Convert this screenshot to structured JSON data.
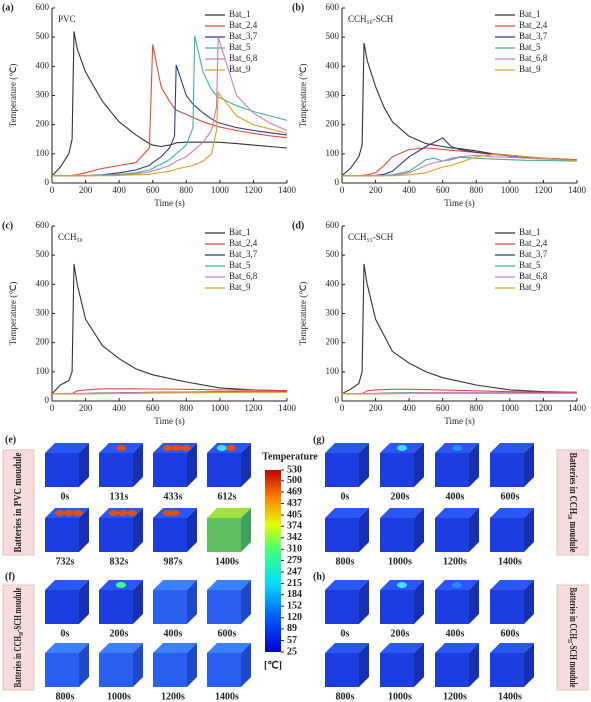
{
  "chart_data": [
    {
      "type": "line",
      "panel_label": "(a)",
      "annotation": "PVC",
      "xlabel": "Time (s)",
      "ylabel": "Temperature (℃)",
      "xlim": [
        0,
        1400
      ],
      "ylim": [
        0,
        600
      ],
      "xticks": [
        0,
        200,
        400,
        600,
        800,
        1000,
        1200,
        1400
      ],
      "yticks": [
        0,
        100,
        200,
        300,
        400,
        500,
        600
      ],
      "legend": "upper right",
      "x": [
        0,
        50,
        100,
        120,
        131,
        150,
        200,
        300,
        400,
        500,
        580,
        600,
        650,
        700,
        730,
        740,
        800,
        840,
        850,
        900,
        950,
        980,
        990,
        1100,
        1200,
        1300,
        1400
      ],
      "series": [
        {
          "name": "Bat_1",
          "color": "#333333",
          "values": [
            25,
            55,
            100,
            150,
            520,
            460,
            380,
            280,
            210,
            165,
            135,
            130,
            125,
            130,
            135,
            138,
            140,
            140,
            140,
            140,
            140,
            140,
            140,
            135,
            130,
            125,
            120
          ]
        },
        {
          "name": "Bat_2,4",
          "color": "#e8483b",
          "values": [
            25,
            25,
            25,
            26,
            27,
            28,
            35,
            50,
            60,
            70,
            120,
            475,
            330,
            280,
            255,
            250,
            235,
            225,
            222,
            210,
            200,
            195,
            193,
            180,
            170,
            162,
            155
          ]
        },
        {
          "name": "Bat_3,7",
          "color": "#2d3a8c",
          "values": [
            25,
            25,
            25,
            25,
            25,
            25,
            25,
            28,
            35,
            45,
            60,
            70,
            90,
            120,
            160,
            405,
            300,
            270,
            265,
            240,
            220,
            210,
            207,
            190,
            180,
            172,
            165
          ]
        },
        {
          "name": "Bat_5",
          "color": "#3cb39b",
          "values": [
            25,
            25,
            25,
            25,
            25,
            25,
            25,
            27,
            30,
            35,
            45,
            50,
            65,
            80,
            95,
            100,
            130,
            190,
            505,
            380,
            320,
            300,
            295,
            265,
            245,
            230,
            215
          ]
        },
        {
          "name": "Bat_6,8",
          "color": "#c77cc0",
          "values": [
            25,
            25,
            25,
            25,
            25,
            25,
            25,
            26,
            28,
            32,
            38,
            42,
            50,
            60,
            70,
            75,
            90,
            110,
            115,
            140,
            180,
            260,
            500,
            300,
            240,
            205,
            180
          ]
        },
        {
          "name": "Bat_9",
          "color": "#e0a020",
          "values": [
            25,
            25,
            25,
            25,
            25,
            25,
            25,
            25,
            26,
            28,
            30,
            32,
            36,
            40,
            45,
            48,
            55,
            60,
            62,
            75,
            100,
            180,
            310,
            230,
            200,
            185,
            170
          ]
        }
      ]
    },
    {
      "type": "line",
      "panel_label": "(b)",
      "annotation": "CCH₅₀-SCH",
      "xlabel": "Time (s)",
      "ylabel": "Temperature (℃)",
      "xlim": [
        0,
        1400
      ],
      "ylim": [
        0,
        600
      ],
      "xticks": [
        0,
        200,
        400,
        600,
        800,
        1000,
        1200,
        1400
      ],
      "yticks": [
        0,
        100,
        200,
        300,
        400,
        500,
        600
      ],
      "legend": "upper right",
      "x": [
        0,
        50,
        100,
        120,
        131,
        150,
        200,
        250,
        300,
        400,
        500,
        550,
        600,
        650,
        700,
        800,
        900,
        1000,
        1100,
        1200,
        1300,
        1400
      ],
      "series": [
        {
          "name": "Bat_1",
          "color": "#333333",
          "values": [
            25,
            50,
            90,
            130,
            480,
            420,
            330,
            260,
            210,
            160,
            135,
            130,
            125,
            120,
            118,
            110,
            100,
            95,
            90,
            85,
            82,
            80
          ]
        },
        {
          "name": "Bat_2,4",
          "color": "#e8483b",
          "values": [
            25,
            25,
            25,
            26,
            27,
            28,
            35,
            60,
            90,
            115,
            120,
            118,
            115,
            112,
            110,
            105,
            100,
            95,
            90,
            85,
            82,
            80
          ]
        },
        {
          "name": "Bat_3,7",
          "color": "#2d3a8c",
          "values": [
            25,
            25,
            25,
            25,
            25,
            25,
            26,
            30,
            40,
            90,
            125,
            140,
            155,
            125,
            115,
            105,
            98,
            93,
            88,
            84,
            80,
            78
          ]
        },
        {
          "name": "Bat_5",
          "color": "#3cb39b",
          "values": [
            25,
            25,
            25,
            25,
            25,
            25,
            25,
            26,
            28,
            40,
            80,
            85,
            75,
            80,
            88,
            85,
            82,
            80,
            78,
            77,
            76,
            75
          ]
        },
        {
          "name": "Bat_6,8",
          "color": "#c77cc0",
          "values": [
            25,
            25,
            25,
            25,
            25,
            25,
            25,
            25,
            26,
            35,
            60,
            70,
            75,
            85,
            90,
            95,
            90,
            88,
            85,
            82,
            80,
            78
          ]
        },
        {
          "name": "Bat_9",
          "color": "#e0a020",
          "values": [
            25,
            25,
            25,
            25,
            25,
            25,
            25,
            25,
            25,
            28,
            35,
            45,
            55,
            60,
            70,
            90,
            98,
            95,
            90,
            85,
            80,
            78
          ]
        }
      ]
    },
    {
      "type": "line",
      "panel_label": "(c)",
      "annotation": "CCH₅₀",
      "xlabel": "Time (s)",
      "ylabel": "Temperature (℃)",
      "xlim": [
        0,
        1400
      ],
      "ylim": [
        0,
        600
      ],
      "xticks": [
        0,
        200,
        400,
        600,
        800,
        1000,
        1200,
        1400
      ],
      "yticks": [
        0,
        100,
        200,
        300,
        400,
        500,
        600
      ],
      "legend": "upper right",
      "x": [
        0,
        50,
        100,
        120,
        131,
        150,
        200,
        300,
        400,
        500,
        600,
        800,
        1000,
        1200,
        1400
      ],
      "series": [
        {
          "name": "Bat_1",
          "color": "#333333",
          "values": [
            25,
            55,
            70,
            100,
            470,
            400,
            280,
            190,
            145,
            110,
            90,
            65,
            45,
            38,
            35
          ]
        },
        {
          "name": "Bat_2,4",
          "color": "#e8483b",
          "values": [
            25,
            25,
            25,
            26,
            28,
            35,
            38,
            42,
            42,
            42,
            41,
            40,
            38,
            37,
            36
          ]
        },
        {
          "name": "Bat_3,7",
          "color": "#2d3a8c",
          "values": [
            25,
            25,
            25,
            25,
            25,
            25,
            26,
            27,
            28,
            29,
            30,
            31,
            32,
            32,
            32
          ]
        },
        {
          "name": "Bat_5",
          "color": "#3cb39b",
          "values": [
            25,
            25,
            25,
            25,
            25,
            25,
            25,
            26,
            27,
            28,
            29,
            30,
            31,
            31,
            31
          ]
        },
        {
          "name": "Bat_6,8",
          "color": "#c77cc0",
          "values": [
            25,
            25,
            25,
            25,
            25,
            25,
            25,
            26,
            27,
            28,
            29,
            30,
            30,
            31,
            31
          ]
        },
        {
          "name": "Bat_9",
          "color": "#e0a020",
          "values": [
            25,
            25,
            25,
            25,
            25,
            25,
            25,
            25,
            26,
            26,
            27,
            28,
            29,
            30,
            30
          ]
        }
      ]
    },
    {
      "type": "line",
      "panel_label": "(d)",
      "annotation": "CCH₅₅-SCH",
      "xlabel": "Time (s)",
      "ylabel": "Temperature (℃)",
      "xlim": [
        0,
        1400
      ],
      "ylim": [
        0,
        600
      ],
      "xticks": [
        0,
        200,
        400,
        600,
        800,
        1000,
        1200,
        1400
      ],
      "yticks": [
        0,
        100,
        200,
        300,
        400,
        500,
        600
      ],
      "legend": "upper right",
      "x": [
        0,
        50,
        100,
        120,
        131,
        150,
        200,
        300,
        400,
        500,
        600,
        800,
        1000,
        1200,
        1400
      ],
      "series": [
        {
          "name": "Bat_1",
          "color": "#333333",
          "values": [
            25,
            40,
            60,
            100,
            470,
            400,
            280,
            170,
            130,
            100,
            80,
            55,
            38,
            32,
            30
          ]
        },
        {
          "name": "Bat_2,4",
          "color": "#e8483b",
          "values": [
            25,
            25,
            25,
            26,
            28,
            35,
            38,
            40,
            40,
            39,
            38,
            35,
            32,
            30,
            30
          ]
        },
        {
          "name": "Bat_3,7",
          "color": "#2d3a8c",
          "values": [
            25,
            25,
            25,
            25,
            25,
            25,
            26,
            27,
            28,
            28,
            28,
            28,
            28,
            28,
            28
          ]
        },
        {
          "name": "Bat_5",
          "color": "#3cb39b",
          "values": [
            25,
            25,
            25,
            25,
            25,
            25,
            25,
            26,
            27,
            27,
            27,
            27,
            27,
            27,
            27
          ]
        },
        {
          "name": "Bat_6,8",
          "color": "#c77cc0",
          "values": [
            25,
            25,
            25,
            25,
            25,
            25,
            25,
            26,
            26,
            27,
            27,
            27,
            27,
            27,
            27
          ]
        },
        {
          "name": "Bat_9",
          "color": "#e0a020",
          "values": [
            25,
            25,
            25,
            25,
            25,
            25,
            25,
            25,
            26,
            26,
            26,
            26,
            26,
            26,
            26
          ]
        }
      ]
    }
  ],
  "thermal": {
    "panels": [
      {
        "label": "(e)",
        "side_label": "Batteries in PVC moudule",
        "times": [
          "0s",
          "131s",
          "433s",
          "612s",
          "732s",
          "832s",
          "987s",
          "1400s"
        ]
      },
      {
        "label": "(f)",
        "side_label": "Batteries in CCH₅₀-SCH moudule",
        "times": [
          "0s",
          "200s",
          "400s",
          "600s",
          "800s",
          "1000s",
          "1200s",
          "1400s"
        ]
      },
      {
        "label": "(g)",
        "side_label": "Batteries in CCH₅₀ moudule",
        "times": [
          "0s",
          "200s",
          "400s",
          "600s",
          "800s",
          "1000s",
          "1200s",
          "1400s"
        ]
      },
      {
        "label": "(h)",
        "side_label": "Batteries in CCH₅₅-SCH moudule",
        "times": [
          "0s",
          "200s",
          "400s",
          "600s",
          "800s",
          "1000s",
          "1200s",
          "1400s"
        ]
      }
    ],
    "colorbar": {
      "title": "Temperature",
      "unit": "[℃]",
      "ticks": [
        530,
        500,
        469,
        437,
        405,
        374,
        342,
        310,
        279,
        247,
        215,
        184,
        152,
        120,
        89,
        57,
        25
      ]
    }
  }
}
